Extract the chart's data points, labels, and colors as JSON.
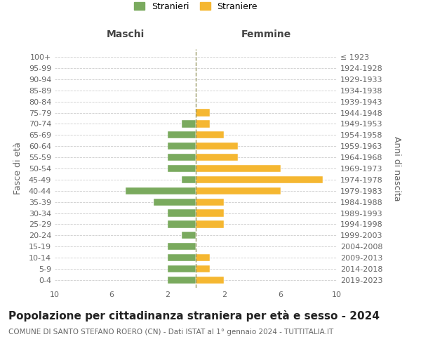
{
  "age_groups": [
    "100+",
    "95-99",
    "90-94",
    "85-89",
    "80-84",
    "75-79",
    "70-74",
    "65-69",
    "60-64",
    "55-59",
    "50-54",
    "45-49",
    "40-44",
    "35-39",
    "30-34",
    "25-29",
    "20-24",
    "15-19",
    "10-14",
    "5-9",
    "0-4"
  ],
  "birth_years": [
    "≤ 1923",
    "1924-1928",
    "1929-1933",
    "1934-1938",
    "1939-1943",
    "1944-1948",
    "1949-1953",
    "1954-1958",
    "1959-1963",
    "1964-1968",
    "1969-1973",
    "1974-1978",
    "1979-1983",
    "1984-1988",
    "1989-1993",
    "1994-1998",
    "1999-2003",
    "2004-2008",
    "2009-2013",
    "2014-2018",
    "2019-2023"
  ],
  "maschi": [
    0,
    0,
    0,
    0,
    0,
    0,
    1,
    2,
    2,
    2,
    2,
    1,
    5,
    3,
    2,
    2,
    1,
    2,
    2,
    2,
    2
  ],
  "femmine": [
    0,
    0,
    0,
    0,
    0,
    1,
    1,
    2,
    3,
    3,
    6,
    9,
    6,
    2,
    2,
    2,
    0,
    0,
    1,
    1,
    2
  ],
  "color_maschi": "#7aaa5e",
  "color_femmine": "#f5b731",
  "background_color": "#ffffff",
  "grid_color": "#cccccc",
  "title": "Popolazione per cittadinanza straniera per età e sesso - 2024",
  "subtitle": "COMUNE DI SANTO STEFANO ROERO (CN) - Dati ISTAT al 1° gennaio 2024 - TUTTITALIA.IT",
  "ylabel_left": "Fasce di età",
  "ylabel_right": "Anni di nascita",
  "xlabel_maschi": "Maschi",
  "xlabel_femmine": "Femmine",
  "legend_stranieri": "Stranieri",
  "legend_straniere": "Straniere",
  "xlim": 10,
  "title_fontsize": 11,
  "subtitle_fontsize": 7.5,
  "axis_label_fontsize": 9,
  "tick_fontsize": 8
}
